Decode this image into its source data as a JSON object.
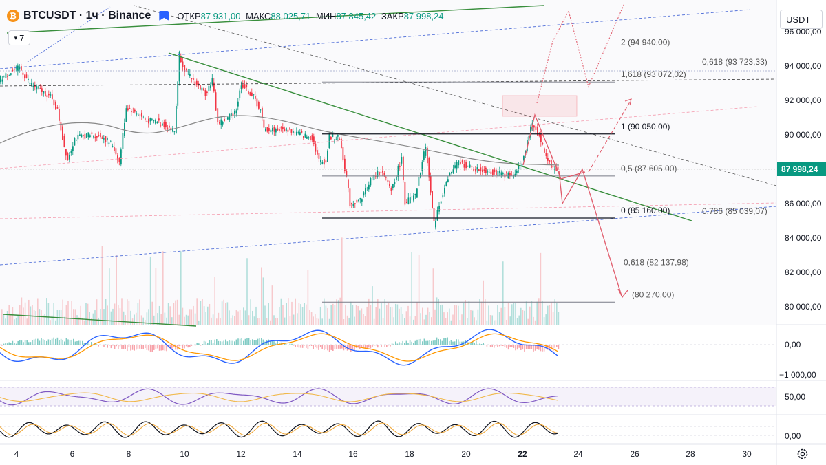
{
  "header": {
    "coin_glyph": "₿",
    "symbol": "BTCUSDT · 1ч · Binance",
    "open_label": "ОТКР",
    "open_value": "87 931,00",
    "high_label": "МАКС",
    "high_value": "88 025,71",
    "low_label": "МИН",
    "low_value": "87 845,42",
    "close_label": "ЗАКР",
    "close_value": "87 998,24",
    "indicators_count": "7",
    "currency_button": "USDT"
  },
  "price_axis": {
    "labels": [
      "96 000,00",
      "94 000,00",
      "92 000,00",
      "90 000,00",
      "86 000,00",
      "84 000,00",
      "82 000,00",
      "80 000,00"
    ],
    "current_price": "87 998,24",
    "macd_zero": "0,00",
    "macd_low": "−1 000,00",
    "rsi_mid": "50,00",
    "stoch_zero": "0,00"
  },
  "time_axis": {
    "labels": [
      "4",
      "6",
      "8",
      "10",
      "12",
      "14",
      "16",
      "18",
      "20",
      "22",
      "24",
      "26",
      "28",
      "30"
    ],
    "highlight": "22"
  },
  "fib_levels": [
    {
      "label": "2 (94 940,00)",
      "price": 94940
    },
    {
      "label": "1,618 (93 072,02)",
      "price": 93072.02
    },
    {
      "label": "1 (90 050,00)",
      "price": 90050
    },
    {
      "label": "0,5 (87 605,00)",
      "price": 87605
    },
    {
      "label": "0 (85 160,00)",
      "price": 85160
    },
    {
      "label": "-0,618 (82 137,98)",
      "price": 82137.98
    },
    {
      "label": "(80 270,00)",
      "price": 80270
    }
  ],
  "fib_right_labels": [
    {
      "label": "0,618 (93 723,33)",
      "price": 93723.33
    },
    {
      "label": "0,786 (85 039,07)",
      "price": 85039.07
    }
  ],
  "colors": {
    "up": "#089981",
    "down": "#f23645",
    "trend": "#388e3c",
    "dashed_blue": "#4f6ed8",
    "dashed_pink": "#f5a3b5",
    "projection": "#e05a6a",
    "ma": "#888888",
    "macd": "#2962ff",
    "signal": "#ff9800",
    "rsi": "#7e57c2"
  }
}
